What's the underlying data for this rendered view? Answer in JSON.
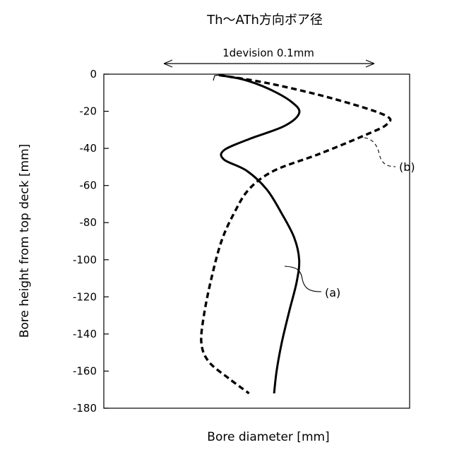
{
  "chart_data": {
    "type": "line",
    "title": "Th〜ATh方向ボア径",
    "scale_annotation": "1devision 0.1mm",
    "xlabel": "Bore diameter [mm]",
    "ylabel": "Bore height from top deck [mm]",
    "ylim": [
      -180,
      0
    ],
    "yticks": [
      0,
      -20,
      -40,
      -60,
      -80,
      -100,
      -120,
      -140,
      -160,
      -180
    ],
    "x_units": "divisions (1 division = 0.1 mm)",
    "xlim": [
      -0.3,
      0.8
    ],
    "grid": false,
    "series": [
      {
        "name": "(a)",
        "style": "solid",
        "color": "#000000",
        "points": [
          {
            "x": 0.0,
            "y": -0.5
          },
          {
            "x": 0.1,
            "y": -3
          },
          {
            "x": 0.2,
            "y": -8
          },
          {
            "x": 0.29,
            "y": -15
          },
          {
            "x": 0.32,
            "y": -21
          },
          {
            "x": 0.26,
            "y": -28
          },
          {
            "x": 0.12,
            "y": -35
          },
          {
            "x": 0.02,
            "y": -41
          },
          {
            "x": 0.02,
            "y": -46
          },
          {
            "x": 0.11,
            "y": -52
          },
          {
            "x": 0.19,
            "y": -62
          },
          {
            "x": 0.25,
            "y": -75
          },
          {
            "x": 0.3,
            "y": -88
          },
          {
            "x": 0.32,
            "y": -100
          },
          {
            "x": 0.31,
            "y": -112
          },
          {
            "x": 0.28,
            "y": -128
          },
          {
            "x": 0.25,
            "y": -145
          },
          {
            "x": 0.23,
            "y": -160
          },
          {
            "x": 0.22,
            "y": -172
          }
        ]
      },
      {
        "name": "(b)",
        "style": "dashed",
        "color": "#000000",
        "points": [
          {
            "x": 0.0,
            "y": -0.5
          },
          {
            "x": 0.2,
            "y": -5
          },
          {
            "x": 0.45,
            "y": -13
          },
          {
            "x": 0.66,
            "y": -22
          },
          {
            "x": 0.67,
            "y": -27
          },
          {
            "x": 0.58,
            "y": -33
          },
          {
            "x": 0.4,
            "y": -43
          },
          {
            "x": 0.22,
            "y": -52
          },
          {
            "x": 0.12,
            "y": -62
          },
          {
            "x": 0.06,
            "y": -75
          },
          {
            "x": 0.01,
            "y": -90
          },
          {
            "x": -0.03,
            "y": -110
          },
          {
            "x": -0.06,
            "y": -130
          },
          {
            "x": -0.07,
            "y": -145
          },
          {
            "x": -0.04,
            "y": -155
          },
          {
            "x": 0.04,
            "y": -164
          },
          {
            "x": 0.12,
            "y": -172
          }
        ]
      }
    ],
    "annotations": [
      {
        "label": "(a)",
        "target_series": "(a)"
      },
      {
        "label": "(b)",
        "target_series": "(b)"
      }
    ]
  }
}
